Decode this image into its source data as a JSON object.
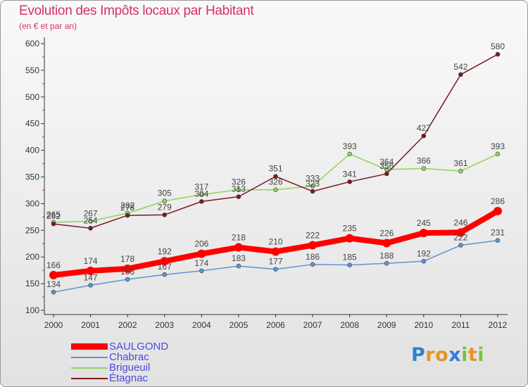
{
  "chart_data": {
    "type": "line",
    "title": "Evolution des Impôts locaux par Habitant",
    "subtitle": "(en € et par an)",
    "xlabel": "",
    "ylabel": "",
    "ylim": [
      100,
      600
    ],
    "yticks": [
      100,
      150,
      200,
      250,
      300,
      350,
      400,
      450,
      500,
      550,
      600
    ],
    "grid": false,
    "legend_position": "bottom-left",
    "categories": [
      "2000",
      "2001",
      "2002",
      "2003",
      "2004",
      "2005",
      "2006",
      "2007",
      "2008",
      "2009",
      "2010",
      "2011",
      "2012"
    ],
    "series": [
      {
        "name": "SAULGOND",
        "color": "#ff0000",
        "emphasis": true,
        "values": [
          166,
          174,
          178,
          192,
          206,
          218,
          210,
          222,
          235,
          226,
          245,
          246,
          286
        ]
      },
      {
        "name": "Chabrac",
        "color": "#5b95d0",
        "values": [
          134,
          147,
          158,
          167,
          174,
          183,
          177,
          186,
          185,
          188,
          192,
          222,
          231
        ]
      },
      {
        "name": "Brigueuil",
        "color": "#8ed45c",
        "values": [
          265,
          267,
          282,
          305,
          317,
          326,
          326,
          333,
          393,
          364,
          366,
          361,
          393
        ]
      },
      {
        "name": "Étagnac",
        "color": "#7a1a1f",
        "values": [
          262,
          254,
          278,
          279,
          304,
          313,
          351,
          323,
          341,
          356,
          427,
          542,
          580
        ]
      }
    ]
  },
  "logo": {
    "letters": [
      "P",
      "r",
      "o",
      "x",
      "i",
      "t",
      "i"
    ],
    "colors": [
      "#2f7fd6",
      "#e8932a",
      "#e8932a",
      "#2f7fd6",
      "#7cc242",
      "#e8932a",
      "#7cc242"
    ]
  }
}
